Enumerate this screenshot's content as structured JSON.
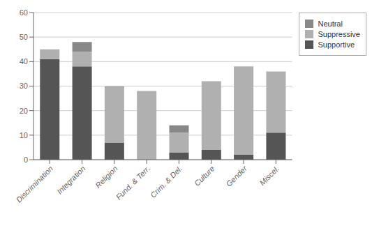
{
  "chart_data": {
    "type": "bar",
    "stacked": true,
    "categories": [
      "Discrimination",
      "Integration",
      "Religion",
      "Fund. & Terr.",
      "Crim. & Del.",
      "Culture",
      "Gender",
      "Miscel."
    ],
    "series": [
      {
        "name": "Supportive",
        "color": "#555555",
        "values": [
          41,
          38,
          7,
          0,
          3,
          4,
          2,
          11
        ]
      },
      {
        "name": "Suppressive",
        "color": "#b0b0b0",
        "values": [
          4,
          6,
          23,
          28,
          8,
          28,
          36,
          25
        ]
      },
      {
        "name": "Neutral",
        "color": "#888888",
        "values": [
          0,
          4,
          0,
          0,
          3,
          0,
          0,
          0
        ]
      }
    ],
    "ylim": [
      0,
      60
    ],
    "yticks": [
      0,
      10,
      20,
      30,
      40,
      50,
      60
    ],
    "grid": true,
    "legend": "upper right"
  }
}
